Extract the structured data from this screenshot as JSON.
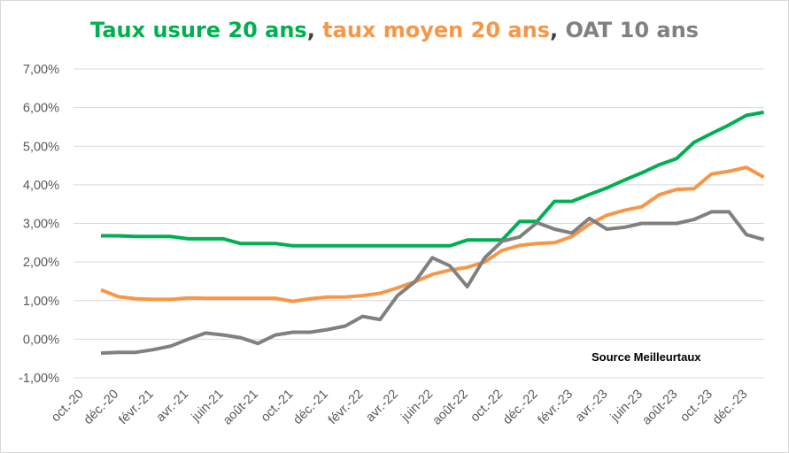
{
  "chart_data": {
    "type": "line",
    "title_parts": [
      {
        "text": "Taux usure 20 ans",
        "color": "#00b050"
      },
      {
        "text": ", ",
        "color": "#404040"
      },
      {
        "text": "taux moyen 20 ans",
        "color": "#f79646"
      },
      {
        "text": ", ",
        "color": "#404040"
      },
      {
        "text": "OAT 10 ans",
        "color": "#808080"
      }
    ],
    "annotation": "Source Meilleurtaux",
    "ylim": [
      -1,
      7
    ],
    "yticks": [
      "-1,00%",
      "0,00%",
      "1,00%",
      "2,00%",
      "3,00%",
      "4,00%",
      "5,00%",
      "6,00%",
      "7,00%"
    ],
    "grid": "horizontal",
    "x_tick_labels": [
      "oct.-20",
      "déc.-20",
      "févr.-21",
      "avr.-21",
      "juin-21",
      "août-21",
      "oct.-21",
      "déc.-21",
      "févr.-22",
      "avr.-22",
      "juin-22",
      "août-22",
      "oct.-22",
      "déc.-22",
      "févr.-23",
      "avr.-23",
      "juin-23",
      "août-23",
      "oct.-23",
      "déc.-23"
    ],
    "x": [
      "nov.-20",
      "déc.-20",
      "janv.-21",
      "févr.-21",
      "mars-21",
      "avr.-21",
      "mai-21",
      "juin-21",
      "juil.-21",
      "août-21",
      "sept.-21",
      "oct.-21",
      "nov.-21",
      "déc.-21",
      "janv.-22",
      "févr.-22",
      "mars-22",
      "avr.-22",
      "mai-22",
      "juin-22",
      "juil.-22",
      "août-22",
      "sept.-22",
      "oct.-22",
      "nov.-22",
      "déc.-22",
      "janv.-23",
      "févr.-23",
      "mars-23",
      "avr.-23",
      "mai-23",
      "juin-23",
      "juil.-23",
      "août-23",
      "sept.-23",
      "oct.-23",
      "nov.-23",
      "déc.-23",
      "janv.-24"
    ],
    "series": [
      {
        "color": "#00b050",
        "values": [
          2.68,
          2.68,
          2.66,
          2.66,
          2.66,
          2.6,
          2.6,
          2.6,
          2.48,
          2.48,
          2.48,
          2.42,
          2.42,
          2.42,
          2.42,
          2.42,
          2.42,
          2.42,
          2.42,
          2.42,
          2.42,
          2.57,
          2.57,
          2.57,
          3.05,
          3.05,
          3.57,
          3.57,
          3.75,
          3.92,
          4.12,
          4.31,
          4.52,
          4.68,
          5.1,
          5.33,
          5.55,
          5.8,
          5.88
        ]
      },
      {
        "color": "#f79646",
        "values": [
          1.28,
          1.1,
          1.05,
          1.03,
          1.03,
          1.07,
          1.06,
          1.06,
          1.06,
          1.06,
          1.06,
          0.98,
          1.05,
          1.09,
          1.09,
          1.13,
          1.19,
          1.33,
          1.49,
          1.68,
          1.79,
          1.86,
          2.0,
          2.3,
          2.43,
          2.48,
          2.5,
          2.66,
          2.98,
          3.21,
          3.34,
          3.43,
          3.74,
          3.88,
          3.9,
          4.28,
          4.35,
          4.45,
          4.2
        ]
      },
      {
        "color": "#808080",
        "values": [
          -0.36,
          -0.34,
          -0.34,
          -0.27,
          -0.18,
          0.0,
          0.16,
          0.11,
          0.04,
          -0.11,
          0.11,
          0.18,
          0.18,
          0.25,
          0.34,
          0.59,
          0.51,
          1.13,
          1.49,
          2.11,
          1.9,
          1.36,
          2.11,
          2.54,
          2.65,
          3.02,
          2.85,
          2.75,
          3.13,
          2.85,
          2.9,
          3.0,
          3.0,
          3.0,
          3.1,
          3.3,
          3.3,
          2.71,
          2.58
        ]
      }
    ]
  }
}
